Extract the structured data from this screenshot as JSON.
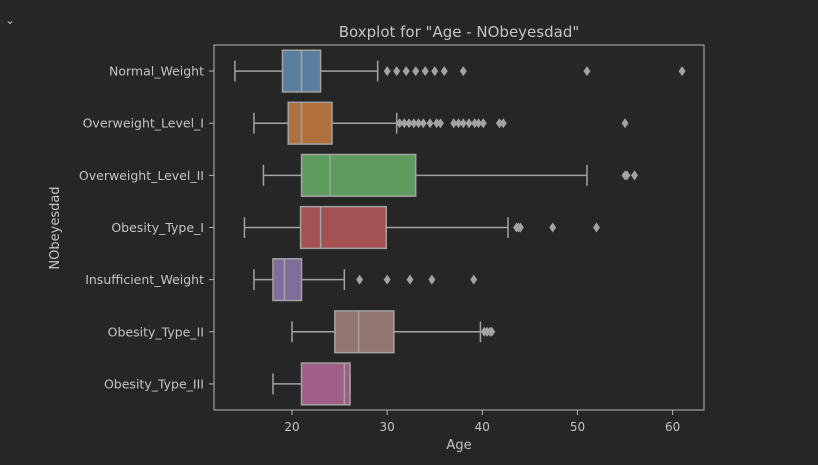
{
  "cell": {
    "collapse_icon": "chevron-down-icon"
  },
  "colors": {
    "background": "#262626",
    "axes_frame": "#b8b8b8",
    "text": "#c4c4c4",
    "whisker": "#a3a3a3",
    "box_fills": [
      "#5b7ea0",
      "#b06f3b",
      "#5e9c5d",
      "#a35151",
      "#7f6d9a",
      "#947670",
      "#a05d85"
    ]
  },
  "chart_data": {
    "type": "box",
    "orientation": "horizontal",
    "title": "Boxplot for \"Age - NObeyesdad\"",
    "xlabel": "Age",
    "ylabel": "NObeyesdad",
    "xlim": [
      11.8,
      63.3
    ],
    "xticks": [
      20,
      30,
      40,
      50,
      60
    ],
    "grid": false,
    "categories": [
      "Normal_Weight",
      "Overweight_Level_I",
      "Overweight_Level_II",
      "Obesity_Type_I",
      "Insufficient_Weight",
      "Obesity_Type_II",
      "Obesity_Type_III"
    ],
    "series": [
      {
        "whislo": 14,
        "q1": 19,
        "med": 21,
        "q3": 23,
        "whishi": 29,
        "fliers": [
          30,
          31,
          32,
          33,
          34,
          35,
          36,
          38,
          51,
          61
        ]
      },
      {
        "whislo": 16,
        "q1": 19.6,
        "med": 21,
        "q3": 24.2,
        "whishi": 31,
        "fliers": [
          31.3,
          31.8,
          32.3,
          32.8,
          33.3,
          33.8,
          34.5,
          35.2,
          35.6,
          37,
          37.5,
          38,
          38.6,
          39.2,
          39.6,
          40.1,
          41.8,
          42.2,
          55
        ]
      },
      {
        "whislo": 17,
        "q1": 21,
        "med": 24,
        "q3": 33,
        "whishi": 51,
        "fliers": [
          55,
          55.2,
          56
        ]
      },
      {
        "whislo": 15,
        "q1": 20.9,
        "med": 23,
        "q3": 29.9,
        "whishi": 42.7,
        "fliers": [
          43.6,
          43.8,
          44,
          47.4,
          52
        ]
      },
      {
        "whislo": 16,
        "q1": 18,
        "med": 19.2,
        "q3": 21,
        "whishi": 25.5,
        "fliers": [
          27.1,
          30,
          32.4,
          34.7,
          39.1
        ]
      },
      {
        "whislo": 20,
        "q1": 24.5,
        "med": 27,
        "q3": 30.7,
        "whishi": 39.8,
        "fliers": [
          40.2,
          40.5,
          40.8,
          41
        ]
      },
      {
        "whislo": 18,
        "q1": 21,
        "med": 25.5,
        "q3": 26.1,
        "whishi": 26.1,
        "fliers": []
      }
    ]
  }
}
